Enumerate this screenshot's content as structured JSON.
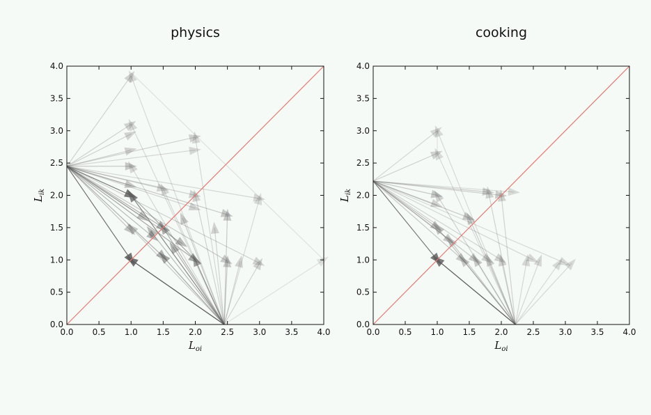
{
  "chart_data": [
    {
      "type": "scatter",
      "subtype": "arrows",
      "title": "physics",
      "xlabel": {
        "base": "L",
        "sub": "oi"
      },
      "ylabel": {
        "base": "L",
        "sub": "ik"
      },
      "xlim": [
        0,
        4
      ],
      "ylim": [
        0,
        4
      ],
      "xticks": [
        "0.0",
        "0.5",
        "1.0",
        "1.5",
        "2.0",
        "2.5",
        "3.0",
        "3.5",
        "4.0"
      ],
      "yticks": [
        "0.0",
        "0.5",
        "1.0",
        "1.5",
        "2.0",
        "2.5",
        "3.0",
        "3.5",
        "4.0"
      ],
      "grid": false,
      "reference_line": {
        "from": [
          0,
          0
        ],
        "to": [
          4,
          4
        ],
        "color": "#e8766f"
      },
      "origin_left": [
        0,
        2.45
      ],
      "origin_bottom": [
        2.45,
        0
      ],
      "arrows_from_left": [
        {
          "to": [
            1.0,
            3.85
          ],
          "alpha": 0.25
        },
        {
          "to": [
            1.0,
            3.1
          ],
          "alpha": 0.25
        },
        {
          "to": [
            1.0,
            2.95
          ],
          "alpha": 0.25
        },
        {
          "to": [
            1.0,
            2.7
          ],
          "alpha": 0.25
        },
        {
          "to": [
            1.0,
            2.45
          ],
          "alpha": 0.3
        },
        {
          "to": [
            1.0,
            2.15
          ],
          "alpha": 0.3
        },
        {
          "to": [
            1.0,
            2.0
          ],
          "alpha": 0.8
        },
        {
          "to": [
            1.0,
            1.45
          ],
          "alpha": 0.35
        },
        {
          "to": [
            1.0,
            1.0
          ],
          "alpha": 0.85
        },
        {
          "to": [
            1.5,
            2.1
          ],
          "alpha": 0.25
        },
        {
          "to": [
            1.5,
            1.5
          ],
          "alpha": 0.45
        },
        {
          "to": [
            1.5,
            1.05
          ],
          "alpha": 0.45
        },
        {
          "to": [
            2.0,
            2.9
          ],
          "alpha": 0.25
        },
        {
          "to": [
            2.0,
            2.7
          ],
          "alpha": 0.22
        },
        {
          "to": [
            2.0,
            2.0
          ],
          "alpha": 0.25
        },
        {
          "to": [
            2.0,
            1.8
          ],
          "alpha": 0.25
        },
        {
          "to": [
            2.0,
            1.0
          ],
          "alpha": 0.5
        },
        {
          "to": [
            2.5,
            1.7
          ],
          "alpha": 0.3
        },
        {
          "to": [
            2.5,
            0.98
          ],
          "alpha": 0.3
        },
        {
          "to": [
            3.0,
            1.95
          ],
          "alpha": 0.22
        },
        {
          "to": [
            3.0,
            0.95
          ],
          "alpha": 0.25
        },
        {
          "to": [
            1.2,
            1.65
          ],
          "alpha": 0.35
        },
        {
          "to": [
            1.35,
            1.35
          ],
          "alpha": 0.4
        },
        {
          "to": [
            1.8,
            1.25
          ],
          "alpha": 0.4
        }
      ],
      "arrows_from_bottom": [
        {
          "to": [
            1.0,
            3.85
          ],
          "alpha": 0.2
        },
        {
          "to": [
            1.0,
            3.1
          ],
          "alpha": 0.2
        },
        {
          "to": [
            1.0,
            2.45
          ],
          "alpha": 0.22
        },
        {
          "to": [
            1.0,
            2.0
          ],
          "alpha": 0.7
        },
        {
          "to": [
            1.0,
            1.0
          ],
          "alpha": 0.85
        },
        {
          "to": [
            1.0,
            1.5
          ],
          "alpha": 0.3
        },
        {
          "to": [
            1.5,
            2.1
          ],
          "alpha": 0.22
        },
        {
          "to": [
            1.5,
            1.5
          ],
          "alpha": 0.45
        },
        {
          "to": [
            1.5,
            1.05
          ],
          "alpha": 0.5
        },
        {
          "to": [
            1.65,
            1.2
          ],
          "alpha": 0.45
        },
        {
          "to": [
            2.0,
            2.9
          ],
          "alpha": 0.22
        },
        {
          "to": [
            2.0,
            2.0
          ],
          "alpha": 0.25
        },
        {
          "to": [
            2.0,
            1.0
          ],
          "alpha": 0.55
        },
        {
          "to": [
            2.5,
            1.7
          ],
          "alpha": 0.3
        },
        {
          "to": [
            2.5,
            0.98
          ],
          "alpha": 0.3
        },
        {
          "to": [
            2.7,
            0.98
          ],
          "alpha": 0.25
        },
        {
          "to": [
            3.0,
            0.95
          ],
          "alpha": 0.25
        },
        {
          "to": [
            3.0,
            1.95
          ],
          "alpha": 0.2
        },
        {
          "to": [
            4.0,
            1.0
          ],
          "alpha": 0.15
        },
        {
          "to": [
            1.3,
            1.45
          ],
          "alpha": 0.4
        },
        {
          "to": [
            1.8,
            1.65
          ],
          "alpha": 0.3
        },
        {
          "to": [
            2.3,
            1.5
          ],
          "alpha": 0.25
        }
      ],
      "extra_lines": [
        {
          "from": [
            1.0,
            3.9
          ],
          "to": [
            4.0,
            1.0
          ],
          "alpha": 0.15
        },
        {
          "from": [
            1.0,
            1.0
          ],
          "to": [
            2.45,
            0.0
          ],
          "alpha": 0.75
        },
        {
          "from": [
            1.0,
            2.0
          ],
          "to": [
            2.0,
            1.0
          ],
          "alpha": 0.5
        }
      ]
    },
    {
      "type": "scatter",
      "subtype": "arrows",
      "title": "cooking",
      "xlabel": {
        "base": "L",
        "sub": "oi"
      },
      "ylabel": {
        "base": "L",
        "sub": "ik"
      },
      "xlim": [
        0,
        4
      ],
      "ylim": [
        0,
        4
      ],
      "xticks": [
        "0.0",
        "0.5",
        "1.0",
        "1.5",
        "2.0",
        "2.5",
        "3.0",
        "3.5",
        "4.0"
      ],
      "yticks": [
        "0.0",
        "0.5",
        "1.0",
        "1.5",
        "2.0",
        "2.5",
        "3.0",
        "3.5",
        "4.0"
      ],
      "grid": false,
      "reference_line": {
        "from": [
          0,
          0
        ],
        "to": [
          4,
          4
        ],
        "color": "#e8766f"
      },
      "origin_left": [
        0,
        2.22
      ],
      "origin_bottom": [
        2.22,
        0
      ],
      "arrows_from_left": [
        {
          "to": [
            1.0,
            3.0
          ],
          "alpha": 0.22
        },
        {
          "to": [
            1.0,
            2.65
          ],
          "alpha": 0.25
        },
        {
          "to": [
            1.0,
            2.0
          ],
          "alpha": 0.3
        },
        {
          "to": [
            1.0,
            1.85
          ],
          "alpha": 0.25
        },
        {
          "to": [
            1.0,
            1.5
          ],
          "alpha": 0.35
        },
        {
          "to": [
            1.0,
            1.0
          ],
          "alpha": 0.8
        },
        {
          "to": [
            1.5,
            1.65
          ],
          "alpha": 0.3
        },
        {
          "to": [
            1.4,
            1.0
          ],
          "alpha": 0.3
        },
        {
          "to": [
            1.6,
            1.0
          ],
          "alpha": 0.3
        },
        {
          "to": [
            1.8,
            2.05
          ],
          "alpha": 0.28
        },
        {
          "to": [
            2.0,
            2.0
          ],
          "alpha": 0.28
        },
        {
          "to": [
            2.0,
            1.0
          ],
          "alpha": 0.25
        },
        {
          "to": [
            2.2,
            2.05
          ],
          "alpha": 0.2
        },
        {
          "to": [
            2.5,
            1.0
          ],
          "alpha": 0.22
        },
        {
          "to": [
            3.0,
            0.95
          ],
          "alpha": 0.2
        },
        {
          "to": [
            1.2,
            1.3
          ],
          "alpha": 0.3
        },
        {
          "to": [
            1.8,
            1.0
          ],
          "alpha": 0.25
        }
      ],
      "arrows_from_bottom": [
        {
          "to": [
            1.0,
            3.0
          ],
          "alpha": 0.2
        },
        {
          "to": [
            1.0,
            2.65
          ],
          "alpha": 0.2
        },
        {
          "to": [
            1.0,
            2.0
          ],
          "alpha": 0.25
        },
        {
          "to": [
            1.0,
            1.5
          ],
          "alpha": 0.35
        },
        {
          "to": [
            1.0,
            1.0
          ],
          "alpha": 0.8
        },
        {
          "to": [
            1.2,
            1.3
          ],
          "alpha": 0.3
        },
        {
          "to": [
            1.4,
            1.0
          ],
          "alpha": 0.3
        },
        {
          "to": [
            1.5,
            1.65
          ],
          "alpha": 0.28
        },
        {
          "to": [
            1.6,
            1.0
          ],
          "alpha": 0.3
        },
        {
          "to": [
            1.8,
            2.05
          ],
          "alpha": 0.25
        },
        {
          "to": [
            1.8,
            1.0
          ],
          "alpha": 0.25
        },
        {
          "to": [
            2.0,
            2.0
          ],
          "alpha": 0.25
        },
        {
          "to": [
            2.0,
            1.0
          ],
          "alpha": 0.25
        },
        {
          "to": [
            2.4,
            1.0
          ],
          "alpha": 0.22
        },
        {
          "to": [
            2.6,
            1.0
          ],
          "alpha": 0.22
        },
        {
          "to": [
            2.9,
            0.95
          ],
          "alpha": 0.2
        },
        {
          "to": [
            3.1,
            0.95
          ],
          "alpha": 0.2
        }
      ],
      "extra_lines": [
        {
          "from": [
            1.0,
            1.0
          ],
          "to": [
            2.22,
            0.0
          ],
          "alpha": 0.75
        },
        {
          "from": [
            1.0,
            3.0
          ],
          "to": [
            1.0,
            2.65
          ],
          "alpha": 0.15
        }
      ]
    }
  ]
}
